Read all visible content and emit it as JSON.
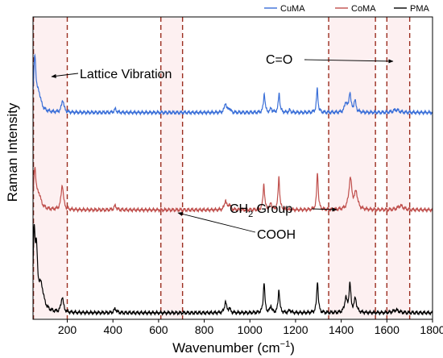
{
  "chart_data": {
    "type": "line",
    "title": "",
    "xlabel": "Wavenumber (cm",
    "xlabel_sup": "−1",
    "xlabel_close": ")",
    "ylabel": "Raman Intensity",
    "xlim": [
      50,
      1800
    ],
    "xticks": [
      200,
      400,
      600,
      800,
      1000,
      1200,
      1400,
      1600,
      1800
    ],
    "y_ticks_shown": false,
    "grid": false,
    "legend_position": "top-right",
    "y_units": "arbitrary (stacked, offset traces)",
    "series": [
      {
        "name": "CuMA",
        "color": "#3a6fd8",
        "offset": 0.72,
        "baseline": 0.0,
        "peaks": [
          {
            "x": 58,
            "h": 0.19,
            "w": 6
          },
          {
            "x": 75,
            "h": 0.06,
            "w": 12
          },
          {
            "x": 180,
            "h": 0.045,
            "w": 6
          },
          {
            "x": 410,
            "h": 0.012,
            "w": 6
          },
          {
            "x": 893,
            "h": 0.035,
            "w": 5
          },
          {
            "x": 910,
            "h": 0.015,
            "w": 5
          },
          {
            "x": 1063,
            "h": 0.07,
            "w": 4
          },
          {
            "x": 1093,
            "h": 0.015,
            "w": 4
          },
          {
            "x": 1128,
            "h": 0.07,
            "w": 4
          },
          {
            "x": 1175,
            "h": 0.008,
            "w": 5
          },
          {
            "x": 1295,
            "h": 0.085,
            "w": 4
          },
          {
            "x": 1420,
            "h": 0.035,
            "w": 6
          },
          {
            "x": 1438,
            "h": 0.07,
            "w": 5
          },
          {
            "x": 1460,
            "h": 0.04,
            "w": 6
          },
          {
            "x": 1640,
            "h": 0.01,
            "w": 15
          }
        ]
      },
      {
        "name": "CoMA",
        "color": "#c0504d",
        "offset": 0.37,
        "baseline": 0.0,
        "peaks": [
          {
            "x": 58,
            "h": 0.14,
            "w": 6
          },
          {
            "x": 75,
            "h": 0.05,
            "w": 12
          },
          {
            "x": 178,
            "h": 0.09,
            "w": 6
          },
          {
            "x": 410,
            "h": 0.015,
            "w": 6
          },
          {
            "x": 893,
            "h": 0.035,
            "w": 5
          },
          {
            "x": 910,
            "h": 0.02,
            "w": 5
          },
          {
            "x": 1061,
            "h": 0.095,
            "w": 4
          },
          {
            "x": 1092,
            "h": 0.025,
            "w": 4
          },
          {
            "x": 1127,
            "h": 0.12,
            "w": 4
          },
          {
            "x": 1296,
            "h": 0.135,
            "w": 4
          },
          {
            "x": 1440,
            "h": 0.11,
            "w": 8
          },
          {
            "x": 1465,
            "h": 0.06,
            "w": 8
          },
          {
            "x": 1660,
            "h": 0.015,
            "w": 14
          }
        ]
      },
      {
        "name": "PMA",
        "color": "#000000",
        "offset": 0.0,
        "baseline": 0.0,
        "peaks": [
          {
            "x": 55,
            "h": 0.26,
            "w": 5
          },
          {
            "x": 65,
            "h": 0.18,
            "w": 6
          },
          {
            "x": 85,
            "h": 0.09,
            "w": 14
          },
          {
            "x": 178,
            "h": 0.055,
            "w": 6
          },
          {
            "x": 410,
            "h": 0.015,
            "w": 6
          },
          {
            "x": 893,
            "h": 0.04,
            "w": 5
          },
          {
            "x": 910,
            "h": 0.015,
            "w": 5
          },
          {
            "x": 1062,
            "h": 0.11,
            "w": 4
          },
          {
            "x": 1092,
            "h": 0.025,
            "w": 4
          },
          {
            "x": 1127,
            "h": 0.085,
            "w": 4
          },
          {
            "x": 1175,
            "h": 0.01,
            "w": 5
          },
          {
            "x": 1296,
            "h": 0.115,
            "w": 4
          },
          {
            "x": 1420,
            "h": 0.05,
            "w": 6
          },
          {
            "x": 1438,
            "h": 0.1,
            "w": 5
          },
          {
            "x": 1462,
            "h": 0.05,
            "w": 6
          },
          {
            "x": 1640,
            "h": 0.01,
            "w": 15
          }
        ]
      }
    ],
    "regions": [
      {
        "name": "lattice-vibration-region",
        "x0": 52,
        "x1": 200
      },
      {
        "name": "cooh-region",
        "x0": 610,
        "x1": 705
      },
      {
        "name": "co-ch2-region",
        "x0": 1345,
        "x1": 1550
      },
      {
        "name": "c-o-region",
        "x0": 1600,
        "x1": 1700
      }
    ],
    "annotations": [
      {
        "name": "lattice-vibration-annotation",
        "text": "Lattice Vibration",
        "sub": "",
        "rest": ""
      },
      {
        "name": "c-o-annotation",
        "text": "C=O",
        "sub": "",
        "rest": ""
      },
      {
        "name": "ch2-group-annotation",
        "text": "CH",
        "sub": "2",
        "rest": " Group"
      },
      {
        "name": "cooh-annotation",
        "text": "COOH",
        "sub": "",
        "rest": ""
      }
    ]
  }
}
